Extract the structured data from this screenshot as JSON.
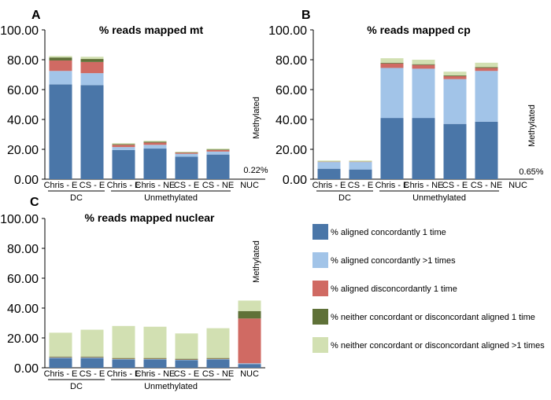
{
  "series_names": [
    "% aligned concordantly 1 time",
    "% aligned concordantly >1 times",
    "% aligned disconcordantly 1 time",
    "% neither concordant or disconcordant aligned 1 time",
    "% neither concordant or disconcordant aligned >1 times"
  ],
  "colors": [
    "#4a76a8",
    "#a2c4e8",
    "#d06a63",
    "#5f7138",
    "#d2e0b2"
  ],
  "chart_data": [
    {
      "letter": "A",
      "type": "bar",
      "stacked": true,
      "title": "% reads mapped mt",
      "categories": [
        "Chris - E",
        "CS - E",
        "Chris - E",
        "Chris - NE",
        "CS - E",
        "CS - NE",
        "NUC"
      ],
      "groups": [
        {
          "label": "DC",
          "from": 0,
          "to": 1
        },
        {
          "label": "Unmethylated",
          "from": 2,
          "to": 5
        }
      ],
      "ylim": [
        0,
        100
      ],
      "yticks": [
        "0.00",
        "20.00",
        "40.00",
        "60.00",
        "80.00",
        "100.00"
      ],
      "series": [
        {
          "name": "% aligned concordantly 1 time",
          "values": [
            63.5,
            63,
            19.5,
            20.5,
            15,
            16.5,
            0
          ]
        },
        {
          "name": "% aligned concordantly >1 times",
          "values": [
            9,
            8,
            2,
            2.5,
            2,
            2,
            0
          ]
        },
        {
          "name": "% aligned disconcordantly 1 time",
          "values": [
            7,
            7.5,
            1.5,
            1.5,
            0.7,
            1,
            0
          ]
        },
        {
          "name": "% neither concordant or disconcordant aligned 1 time",
          "values": [
            2,
            2,
            0.5,
            0.6,
            0.3,
            0.4,
            0
          ]
        },
        {
          "name": "% neither concordant or disconcordant aligned >1 times",
          "values": [
            1,
            1.5,
            0.6,
            0.6,
            0.4,
            0.6,
            0
          ]
        }
      ],
      "annotations": {
        "vertical": "Methylated",
        "value": "0.22%"
      }
    },
    {
      "letter": "B",
      "type": "bar",
      "stacked": true,
      "title": "% reads mapped cp",
      "categories": [
        "Chris - E",
        "CS - E",
        "Chris - E",
        "Chris - NE",
        "CS - E",
        "CS - NE",
        "NUC"
      ],
      "groups": [
        {
          "label": "DC",
          "from": 0,
          "to": 1
        },
        {
          "label": "Unmethylated",
          "from": 2,
          "to": 5
        }
      ],
      "ylim": [
        0,
        100
      ],
      "yticks": [
        "0.00",
        "20.00",
        "40.00",
        "60.00",
        "80.00",
        "100.00"
      ],
      "series": [
        {
          "name": "% aligned concordantly 1 time",
          "values": [
            7,
            6.5,
            41,
            41,
            37,
            38.5,
            0
          ]
        },
        {
          "name": "% aligned concordantly >1 times",
          "values": [
            4.5,
            5,
            33.5,
            33,
            30,
            34,
            0
          ]
        },
        {
          "name": "% aligned disconcordantly 1 time",
          "values": [
            0.2,
            0.2,
            3,
            2.5,
            2,
            2,
            0
          ]
        },
        {
          "name": "% neither concordant or disconcordant aligned 1 time",
          "values": [
            0.1,
            0.1,
            0.5,
            0.5,
            0.5,
            0.5,
            0
          ]
        },
        {
          "name": "% neither concordant or disconcordant aligned >1 times",
          "values": [
            0.7,
            0.7,
            3,
            3,
            2.5,
            3,
            0
          ]
        }
      ],
      "annotations": {
        "vertical": "Methylated",
        "value": "0.65%"
      }
    },
    {
      "letter": "C",
      "type": "bar",
      "stacked": true,
      "title": "% reads mapped nuclear",
      "categories": [
        "Chris - E",
        "CS - E",
        "Chris - E",
        "Chris - NE",
        "CS - E",
        "CS - NE",
        "NUC"
      ],
      "groups": [
        {
          "label": "DC",
          "from": 0,
          "to": 1
        },
        {
          "label": "Unmethylated",
          "from": 2,
          "to": 5
        }
      ],
      "ylim": [
        0,
        100
      ],
      "yticks": [
        "0.00",
        "20.00",
        "40.00",
        "60.00",
        "80.00",
        "100.00"
      ],
      "series": [
        {
          "name": "% aligned concordantly 1 time",
          "values": [
            6.5,
            6.5,
            5.5,
            5.5,
            5,
            5.5,
            2.5
          ]
        },
        {
          "name": "% aligned concordantly >1 times",
          "values": [
            0.3,
            0.3,
            0.3,
            0.3,
            0.3,
            0.3,
            0.5
          ]
        },
        {
          "name": "% aligned disconcordantly 1 time",
          "values": [
            0.2,
            0.2,
            0.2,
            0.2,
            0.2,
            0.2,
            30
          ]
        },
        {
          "name": "% neither concordant or disconcordant aligned 1 time",
          "values": [
            0.5,
            0.5,
            0.5,
            0.5,
            0.5,
            0.5,
            5
          ]
        },
        {
          "name": "% neither concordant or disconcordant aligned >1 times",
          "values": [
            16,
            18,
            21.5,
            21,
            17,
            20,
            7
          ]
        }
      ],
      "annotations": {
        "vertical": "Methylated",
        "value": ""
      }
    }
  ]
}
